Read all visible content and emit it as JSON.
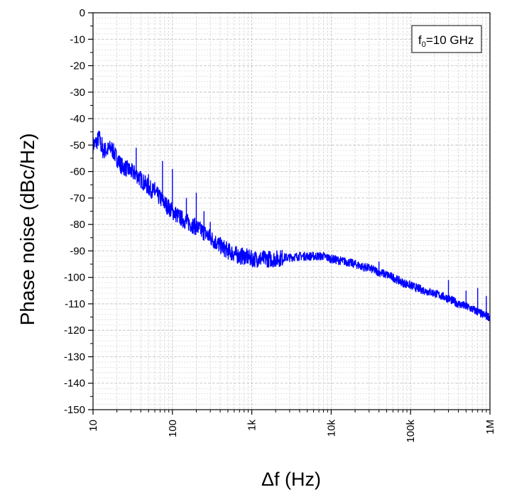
{
  "chart_data": {
    "type": "line",
    "xlabel": "Δf (Hz)",
    "ylabel": "Phase noise (dBc/Hz)",
    "x_scale": "log",
    "xlim": [
      10,
      1000000
    ],
    "ylim": [
      -150,
      0
    ],
    "x_ticks": [
      {
        "value": 10,
        "label": "10"
      },
      {
        "value": 100,
        "label": "100"
      },
      {
        "value": 1000,
        "label": "1k"
      },
      {
        "value": 10000,
        "label": "10k"
      },
      {
        "value": 100000,
        "label": "100k"
      },
      {
        "value": 1000000,
        "label": "1M"
      }
    ],
    "y_ticks": [
      0,
      -10,
      -20,
      -30,
      -40,
      -50,
      -60,
      -70,
      -80,
      -90,
      -100,
      -110,
      -120,
      -130,
      -140,
      -150
    ],
    "grid": true,
    "legend_position": "top-right",
    "annotation": {
      "f": "f",
      "sub": "0",
      "rest": "=10 GHz"
    },
    "line_color": "#0000ff",
    "series": [
      {
        "x": [
          10,
          11,
          12,
          13,
          15,
          17,
          20,
          23,
          27,
          30,
          35,
          40,
          50,
          60,
          70,
          80,
          100,
          120,
          150,
          200,
          250,
          300,
          400,
          500,
          600,
          700,
          800,
          1000,
          1200,
          1500,
          2000,
          2500,
          3000,
          4000,
          5000,
          6000,
          7000,
          8000,
          10000,
          12000,
          15000,
          20000,
          25000,
          30000,
          40000,
          50000,
          60000,
          80000,
          100000,
          120000,
          150000,
          200000,
          300000,
          400000,
          500000,
          600000,
          700000,
          800000,
          900000,
          1000000
        ],
        "y": [
          -50,
          -49,
          -47,
          -52,
          -52,
          -51,
          -55,
          -58,
          -59,
          -60,
          -61,
          -63,
          -66,
          -68,
          -70,
          -72,
          -75,
          -77,
          -79,
          -81,
          -83,
          -85,
          -88,
          -90,
          -91,
          -92,
          -92,
          -93,
          -93,
          -93,
          -93,
          -92.5,
          -92.5,
          -92,
          -92,
          -92,
          -92,
          -92,
          -93,
          -93.5,
          -94,
          -95,
          -96,
          -96.5,
          -98,
          -99,
          -100,
          -102,
          -103,
          -104,
          -105,
          -106,
          -108,
          -110,
          -111,
          -112,
          -113,
          -114,
          -114.5,
          -115
        ]
      }
    ],
    "spikes": [
      {
        "x": 13,
        "y": -47
      },
      {
        "x": 17,
        "y": -51
      },
      {
        "x": 25,
        "y": -57
      },
      {
        "x": 35,
        "y": -51
      },
      {
        "x": 50,
        "y": -61
      },
      {
        "x": 60,
        "y": -64
      },
      {
        "x": 75,
        "y": -56
      },
      {
        "x": 100,
        "y": -59
      },
      {
        "x": 150,
        "y": -70
      },
      {
        "x": 200,
        "y": -68
      },
      {
        "x": 250,
        "y": -75
      },
      {
        "x": 300,
        "y": -79
      },
      {
        "x": 400,
        "y": -87
      },
      {
        "x": 40000,
        "y": -94
      },
      {
        "x": 300000,
        "y": -101
      },
      {
        "x": 500000,
        "y": -105
      },
      {
        "x": 700000,
        "y": -104
      },
      {
        "x": 900000,
        "y": -107
      }
    ]
  }
}
